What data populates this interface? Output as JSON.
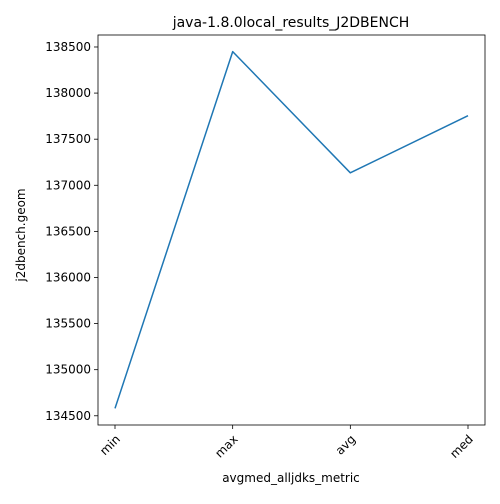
{
  "chart_data": {
    "type": "line",
    "title": "java-1.8.0local_results_J2DBENCH",
    "xlabel": "avgmed_alljdks_metric",
    "ylabel": "j2dbench.geom",
    "categories": [
      "min",
      "max",
      "avg",
      "med"
    ],
    "series": [
      {
        "values": [
          134580,
          138450,
          137135,
          137755
        ],
        "color": "#1f77b4"
      }
    ],
    "ylim": [
      134400,
      138630
    ],
    "yticks": [
      134500,
      135000,
      135500,
      136000,
      136500,
      137000,
      137500,
      138000,
      138500
    ],
    "xtick_rotation": 45,
    "grid": false,
    "legend": "none"
  }
}
